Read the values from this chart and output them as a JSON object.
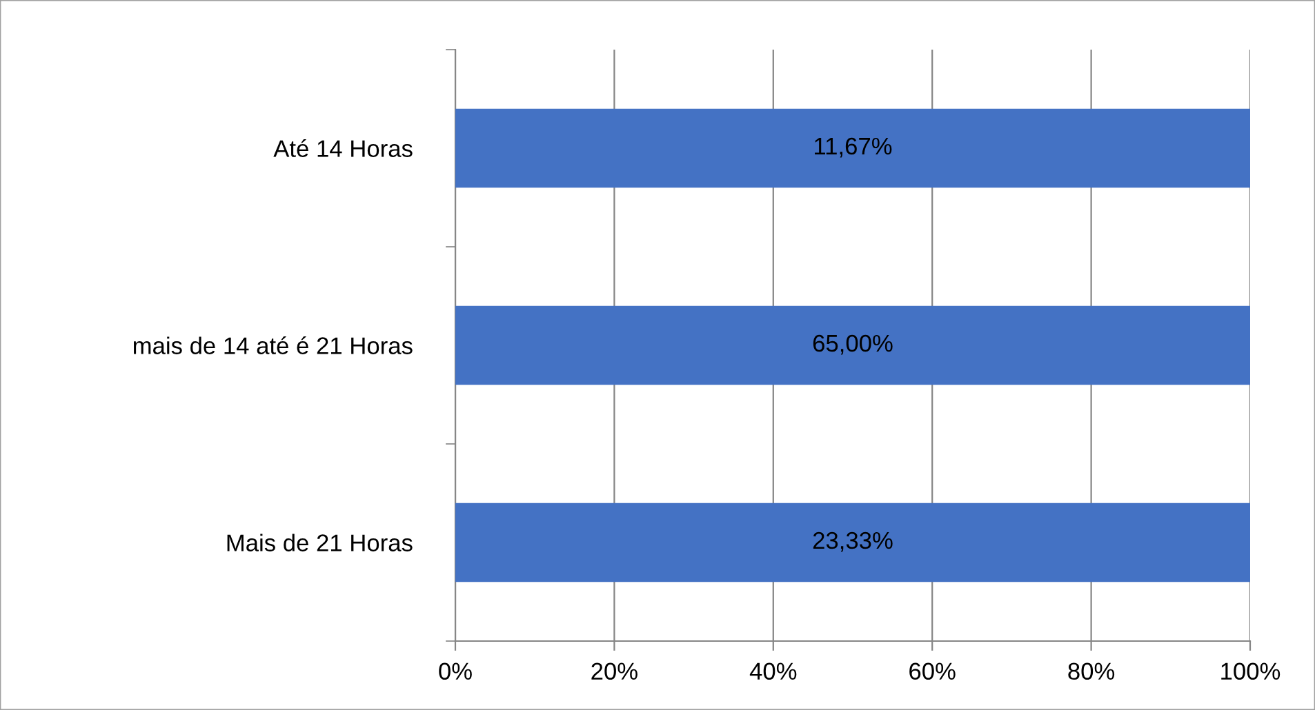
{
  "chart_data": {
    "type": "bar",
    "orientation": "horizontal",
    "categories": [
      "Até 14 Horas",
      "mais de 14 até é 21 Horas",
      "Mais de 21 Horas"
    ],
    "series": [
      {
        "color": "#4472c4",
        "values": [
          100,
          100,
          100
        ]
      }
    ],
    "annotations": [
      "11,67%",
      "65,00%",
      "23,33%"
    ],
    "xlim": [
      0,
      100
    ],
    "xticks": [
      {
        "value": 0,
        "label": "0%"
      },
      {
        "value": 20,
        "label": "20%"
      },
      {
        "value": 40,
        "label": "40%"
      },
      {
        "value": 60,
        "label": "60%"
      },
      {
        "value": 80,
        "label": "80%"
      },
      {
        "value": 100,
        "label": "100%"
      }
    ],
    "grid": "x",
    "legend": false
  }
}
